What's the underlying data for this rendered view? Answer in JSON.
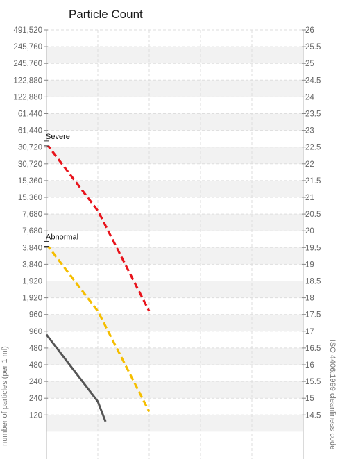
{
  "chart_data": {
    "type": "line",
    "title": "Particle Count",
    "ylabel": "number of particles (per 1 ml)",
    "ylabel_right": "ISO 4406:1999 cleanliness code",
    "y_left_ticks": [
      "491,520",
      "245,760",
      "245,760",
      "122,880",
      "122,880",
      "61,440",
      "61,440",
      "30,720",
      "30,720",
      "15,360",
      "15,360",
      "7,680",
      "7,680",
      "3,840",
      "3,840",
      "1,920",
      "1,920",
      "960",
      "960",
      "480",
      "480",
      "240",
      "240",
      "120"
    ],
    "y_right_ticks": [
      "26",
      "25.5",
      "25",
      "24.5",
      "24",
      "23.5",
      "23",
      "22.5",
      "22",
      "21.5",
      "21",
      "20.5",
      "20",
      "19.5",
      "19",
      "18.5",
      "18",
      "17.5",
      "17",
      "16.5",
      "16",
      "15.5",
      "15",
      "14.5"
    ],
    "ylim_code": [
      14.0,
      26.0
    ],
    "grid": true,
    "x_gridlines": 6,
    "series": [
      {
        "name": "Severe",
        "style": "dashed",
        "color": "#e8141c",
        "points": [
          {
            "x": 0,
            "y": 22.6
          },
          {
            "x": 1,
            "y": 20.6
          },
          {
            "x": 2,
            "y": 17.6
          }
        ],
        "label_marker": true
      },
      {
        "name": "Abnormal",
        "style": "dashed",
        "color": "#f5be00",
        "points": [
          {
            "x": 0,
            "y": 19.6
          },
          {
            "x": 1,
            "y": 17.6
          },
          {
            "x": 2,
            "y": 14.6
          }
        ],
        "label_marker": true
      },
      {
        "name": "",
        "style": "solid",
        "color": "#555555",
        "points": [
          {
            "x": 0,
            "y": 16.9
          },
          {
            "x": 1,
            "y": 14.9
          },
          {
            "x": 1.15,
            "y": 14.3
          }
        ],
        "label_marker": false
      }
    ]
  }
}
